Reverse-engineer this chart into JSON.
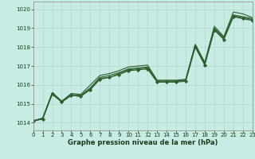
{
  "xlabel": "Graphe pression niveau de la mer (hPa)",
  "bg_color": "#c8ece4",
  "grid_color": "#b0d8cc",
  "line_color": "#2d5e2d",
  "ylim": [
    1013.6,
    1020.4
  ],
  "xlim": [
    0,
    23
  ],
  "yticks": [
    1014,
    1015,
    1016,
    1017,
    1018,
    1019,
    1020
  ],
  "xticks": [
    0,
    1,
    2,
    3,
    4,
    5,
    6,
    7,
    8,
    9,
    10,
    11,
    12,
    13,
    14,
    15,
    16,
    17,
    18,
    19,
    20,
    21,
    22,
    23
  ],
  "series": [
    {
      "x": [
        0,
        1,
        2,
        3,
        4,
        5,
        6,
        7,
        8,
        9,
        10,
        11,
        12,
        13,
        14,
        15,
        16,
        17,
        18,
        19,
        20,
        21,
        22,
        23
      ],
      "y": [
        1014.1,
        1014.25,
        1015.6,
        1015.15,
        1015.55,
        1015.5,
        1016.0,
        1016.5,
        1016.6,
        1016.75,
        1016.95,
        1017.0,
        1017.05,
        1016.25,
        1016.25,
        1016.25,
        1016.3,
        1018.15,
        1017.2,
        1019.1,
        1018.55,
        1019.85,
        1019.75,
        1019.55
      ],
      "marker": null,
      "lw": 0.8
    },
    {
      "x": [
        0,
        1,
        2,
        3,
        4,
        5,
        6,
        7,
        8,
        9,
        10,
        11,
        12,
        13,
        14,
        15,
        16,
        17,
        18,
        19,
        20,
        21,
        22,
        23
      ],
      "y": [
        1014.1,
        1014.25,
        1015.55,
        1015.1,
        1015.5,
        1015.45,
        1015.85,
        1016.4,
        1016.5,
        1016.65,
        1016.85,
        1016.9,
        1016.95,
        1016.2,
        1016.2,
        1016.2,
        1016.25,
        1018.1,
        1017.15,
        1019.0,
        1018.5,
        1019.7,
        1019.6,
        1019.5
      ],
      "marker": null,
      "lw": 0.8
    },
    {
      "x": [
        0,
        1,
        2,
        3,
        4,
        5,
        6,
        7,
        8,
        9,
        10,
        11,
        12,
        13,
        14,
        15,
        16,
        17,
        18,
        19,
        20,
        21,
        22,
        23
      ],
      "y": [
        1014.1,
        1014.2,
        1015.5,
        1015.1,
        1015.45,
        1015.4,
        1015.8,
        1016.35,
        1016.4,
        1016.6,
        1016.8,
        1016.85,
        1016.9,
        1016.2,
        1016.2,
        1016.2,
        1016.25,
        1018.05,
        1017.1,
        1018.95,
        1018.45,
        1019.65,
        1019.55,
        1019.45
      ],
      "marker": null,
      "lw": 0.8
    },
    {
      "x": [
        0,
        1,
        2,
        3,
        4,
        5,
        6,
        7,
        8,
        9,
        10,
        11,
        12,
        13,
        14,
        15,
        16,
        17,
        18,
        19,
        20,
        21,
        22,
        23
      ],
      "y": [
        1014.1,
        1014.2,
        1015.55,
        1015.1,
        1015.45,
        1015.4,
        1015.75,
        1016.3,
        1016.4,
        1016.55,
        1016.75,
        1016.8,
        1016.85,
        1016.15,
        1016.15,
        1016.15,
        1016.2,
        1018.0,
        1017.05,
        1018.9,
        1018.4,
        1019.6,
        1019.5,
        1019.4
      ],
      "marker": "D",
      "lw": 0.9
    }
  ]
}
